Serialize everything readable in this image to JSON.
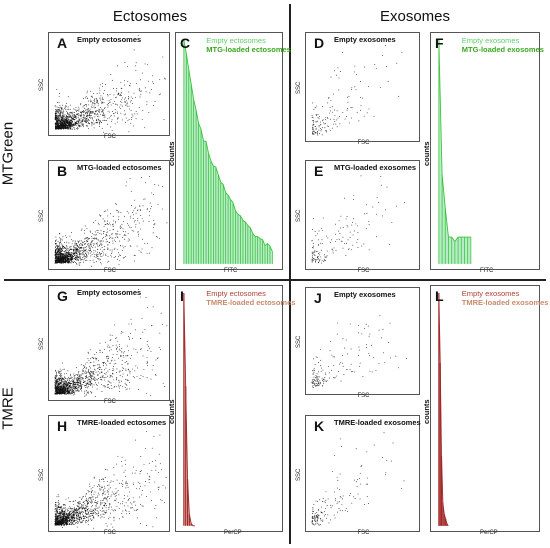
{
  "column_titles": {
    "left": "Ectosomes",
    "right": "Exosomes"
  },
  "row_titles": {
    "top": "MTGreen",
    "bottom": "TMRE"
  },
  "colors": {
    "green_fill": "#b8ecc8",
    "green_line": "#3cc43c",
    "green_legend_1": "#5fd06a",
    "green_legend_2": "#3aa820",
    "red_line": "#a0282a",
    "red_legend_1": "#b04036",
    "red_legend_2": "#c88a6c",
    "dots": "#111111"
  },
  "chart_data": [
    {
      "id": "A",
      "type": "scatter",
      "title": "Empty ectosomes",
      "xlabel": "FSC",
      "ylabel": "SSC",
      "density": "high"
    },
    {
      "id": "B",
      "type": "scatter",
      "title": "MTG-loaded ectosomes",
      "xlabel": "FSC",
      "ylabel": "SSC",
      "density": "high"
    },
    {
      "id": "C",
      "type": "area",
      "xlabel": "FITC",
      "ylabel": "counts",
      "legend": [
        "Empty ectosomes",
        "MTG-loaded ectosomes"
      ],
      "series_values": [
        100,
        95,
        88,
        80,
        74,
        68,
        63,
        60,
        56,
        54,
        50,
        47,
        45,
        42,
        40,
        37,
        35,
        33,
        31,
        29,
        27,
        25,
        23,
        22,
        20,
        18,
        17,
        16,
        14,
        13,
        12,
        11,
        10,
        9,
        8,
        7,
        6
      ]
    },
    {
      "id": "D",
      "type": "scatter",
      "title": "Empty exosomes",
      "xlabel": "FSC",
      "ylabel": "SSC",
      "density": "low"
    },
    {
      "id": "E",
      "type": "scatter",
      "title": "MTG-loaded exosomes",
      "xlabel": "FSC",
      "ylabel": "SSC",
      "density": "low"
    },
    {
      "id": "F",
      "type": "area",
      "xlabel": "FITC",
      "ylabel": "counts",
      "legend": [
        "Empty exosomes",
        "MTG-loaded exosomes"
      ],
      "series_values": [
        100,
        40,
        25,
        12,
        12,
        10,
        12,
        12,
        12,
        12,
        12
      ]
    },
    {
      "id": "G",
      "type": "scatter",
      "title": "Empty ectosomes",
      "xlabel": "FSC",
      "ylabel": "SSC",
      "density": "high"
    },
    {
      "id": "H",
      "type": "scatter",
      "title": "TMRE-loaded ectosomes",
      "xlabel": "FSC",
      "ylabel": "SSC",
      "density": "high"
    },
    {
      "id": "I",
      "type": "area",
      "xlabel": "PerCP",
      "ylabel": "counts",
      "legend": [
        "Empty ectosomes",
        "TMRE-loaded ectosomes"
      ],
      "series_values": [
        100,
        60,
        20,
        5,
        1,
        0,
        0
      ]
    },
    {
      "id": "J",
      "type": "scatter",
      "title": "Empty exosomes",
      "xlabel": "FSC",
      "ylabel": "SSC",
      "density": "low"
    },
    {
      "id": "K",
      "type": "scatter",
      "title": "TMRE-loaded exosomes",
      "xlabel": "FSC",
      "ylabel": "SSC",
      "density": "low"
    },
    {
      "id": "L",
      "type": "area",
      "xlabel": "PerCP",
      "ylabel": "counts",
      "legend": [
        "Empty exosomes",
        "TMRE-loaded exosomes"
      ],
      "series_values": [
        100,
        70,
        30,
        10,
        5,
        3,
        1,
        0
      ]
    }
  ]
}
